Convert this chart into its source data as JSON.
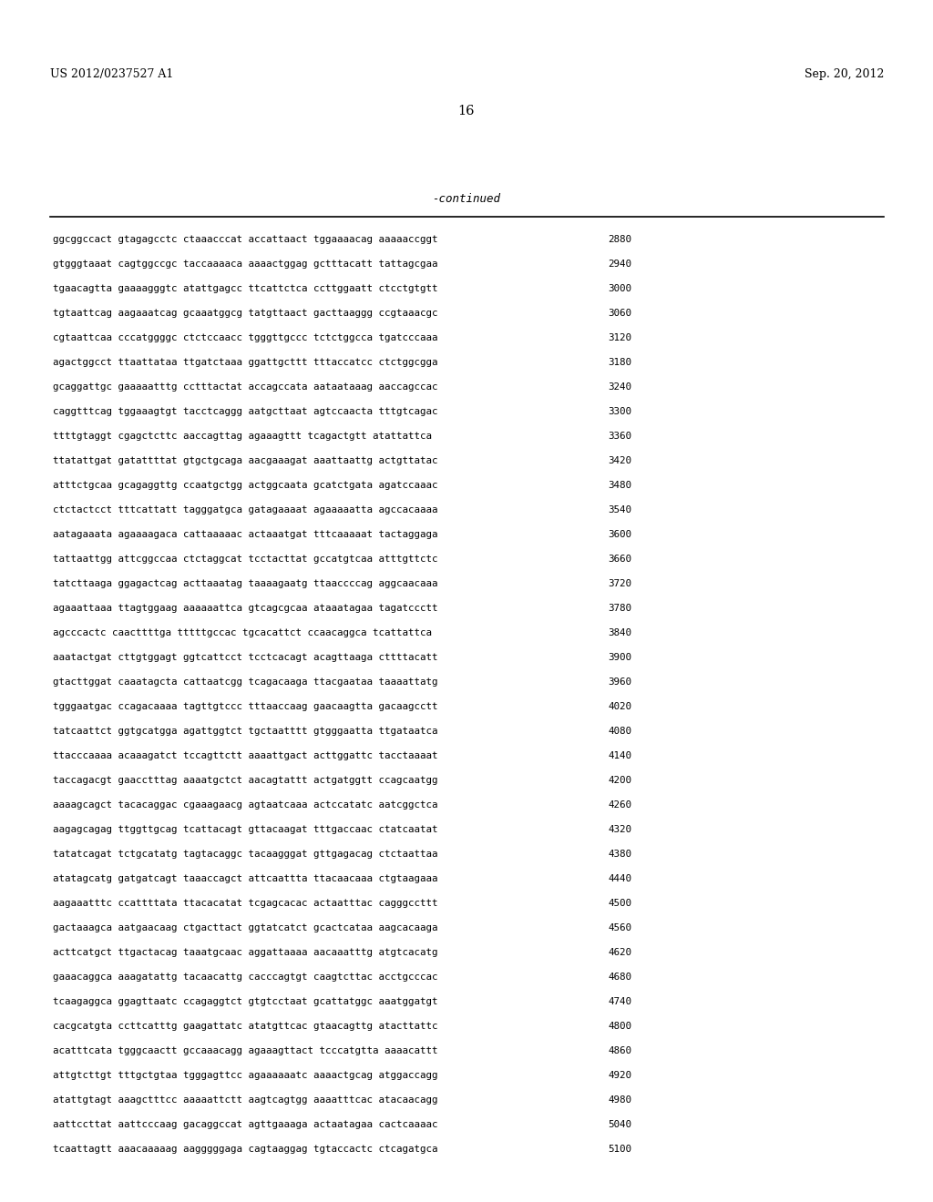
{
  "left_header": "US 2012/0237527 A1",
  "right_header": "Sep. 20, 2012",
  "page_number": "16",
  "continued_label": "-continued",
  "background_color": "#ffffff",
  "text_color": "#000000",
  "header_fontsize": 9.0,
  "page_num_fontsize": 10.5,
  "continued_fontsize": 9.0,
  "seq_fontsize": 7.8,
  "seq_lines": [
    [
      "ggcggccact gtagagcctc ctaaacccat accattaact tggaaaacag aaaaaccggt",
      "2880"
    ],
    [
      "gtgggtaaat cagtggccgc taccaaaaca aaaactggag gctttacatt tattagcgaa",
      "2940"
    ],
    [
      "tgaacagtta gaaaagggtc atattgagcc ttcattctca ccttggaatt ctcctgtgtt",
      "3000"
    ],
    [
      "tgtaattcag aagaaatcag gcaaatggcg tatgttaact gacttaaggg ccgtaaacgc",
      "3060"
    ],
    [
      "cgtaattcaa cccatggggc ctctccaacc tgggttgccc tctctggcca tgatcccaaa",
      "3120"
    ],
    [
      "agactggcct ttaattataa ttgatctaaa ggattgcttt tttaccatcc ctctggcgga",
      "3180"
    ],
    [
      "gcaggattgc gaaaaatttg cctttactat accagccata aataataaag aaccagccac",
      "3240"
    ],
    [
      "caggtttcag tggaaagtgt tacctcaggg aatgcttaat agtccaacta tttgtcagac",
      "3300"
    ],
    [
      "ttttgtaggt cgagctcttc aaccagttag agaaagttt tcagactgtt atattattca",
      "3360"
    ],
    [
      "ttatattgat gatattttat gtgctgcaga aacgaaagat aaattaattg actgttatac",
      "3420"
    ],
    [
      "atttctgcaa gcagaggttg ccaatgctgg actggcaata gcatctgata agatccaaac",
      "3480"
    ],
    [
      "ctctactcct tttcattatt tagggatgca gatagaaaat agaaaaatta agccacaaaa",
      "3540"
    ],
    [
      "aatagaaata agaaaagaca cattaaaaac actaaatgat tttcaaaaat tactaggaga",
      "3600"
    ],
    [
      "tattaattgg attcggccaa ctctaggcat tcctacttat gccatgtcaa atttgttctc",
      "3660"
    ],
    [
      "tatcttaaga ggagactcag acttaaatag taaaagaatg ttaaccccag aggcaacaaa",
      "3720"
    ],
    [
      "agaaattaaa ttagtggaag aaaaaattca gtcagcgcaa ataaatagaa tagatccctt",
      "3780"
    ],
    [
      "agcccactc caacttttga tttttgccac tgcacattct ccaacaggca tcattattca",
      "3840"
    ],
    [
      "aaatactgat cttgtggagt ggtcattcct tcctcacagt acagttaaga cttttacatt",
      "3900"
    ],
    [
      "gtacttggat caaatagcta cattaatcgg tcagacaaga ttacgaataa taaaattatg",
      "3960"
    ],
    [
      "tgggaatgac ccagacaaaa tagttgtccc tttaaccaag gaacaagtta gacaagcctt",
      "4020"
    ],
    [
      "tatcaattct ggtgcatgga agattggtct tgctaatttt gtgggaatta ttgataatca",
      "4080"
    ],
    [
      "ttacccaaaa acaaagatct tccagttctt aaaattgact acttggattc tacctaaaat",
      "4140"
    ],
    [
      "taccagacgt gaacctttag aaaatgctct aacagtattt actgatggtt ccagcaatgg",
      "4200"
    ],
    [
      "aaaagcagct tacacaggac cgaaagaacg agtaatcaaa actccatatc aatcggctca",
      "4260"
    ],
    [
      "aagagcagag ttggttgcag tcattacagt gttacaagat tttgaccaac ctatcaatat",
      "4320"
    ],
    [
      "tatatcagat tctgcatatg tagtacaggc tacaagggat gttgagacag ctctaattaa",
      "4380"
    ],
    [
      "atatagcatg gatgatcagt taaaccagct attcaattta ttacaacaaa ctgtaagaaa",
      "4440"
    ],
    [
      "aagaaatttc ccattttata ttacacatat tcgagcacac actaatttac cagggccttt",
      "4500"
    ],
    [
      "gactaaagca aatgaacaag ctgacttact ggtatcatct gcactcataa aagcacaaga",
      "4560"
    ],
    [
      "acttcatgct ttgactacag taaatgcaac aggattaaaa aacaaatttg atgtcacatg",
      "4620"
    ],
    [
      "gaaacaggca aaagatattg tacaacattg cacccagtgt caagtcttac acctgcccac",
      "4680"
    ],
    [
      "tcaagaggca ggagttaatc ccagaggtct gtgtcctaat gcattatggc aaatggatgt",
      "4740"
    ],
    [
      "cacgcatgta ccttcatttg gaagattatc atatgttcac gtaacagttg atacttattc",
      "4800"
    ],
    [
      "acatttcata tgggcaactt gccaaacagg agaaagttact tcccatgtta aaaacattt",
      "4860"
    ],
    [
      "attgtcttgt tttgctgtaa tgggagttcc agaaaaaatc aaaactgcag atggaccagg",
      "4920"
    ],
    [
      "atattgtagt aaagctttcc aaaaattctt aagtcagtgg aaaatttcac atacaacagg",
      "4980"
    ],
    [
      "aattccttat aattcccaag gacaggccat agttgaaaga actaatagaa cactcaaaac",
      "5040"
    ],
    [
      "tcaattagtt aaacaaaaag aagggggaga cagtaaggag tgtaccactc ctcagatgca",
      "5100"
    ]
  ]
}
